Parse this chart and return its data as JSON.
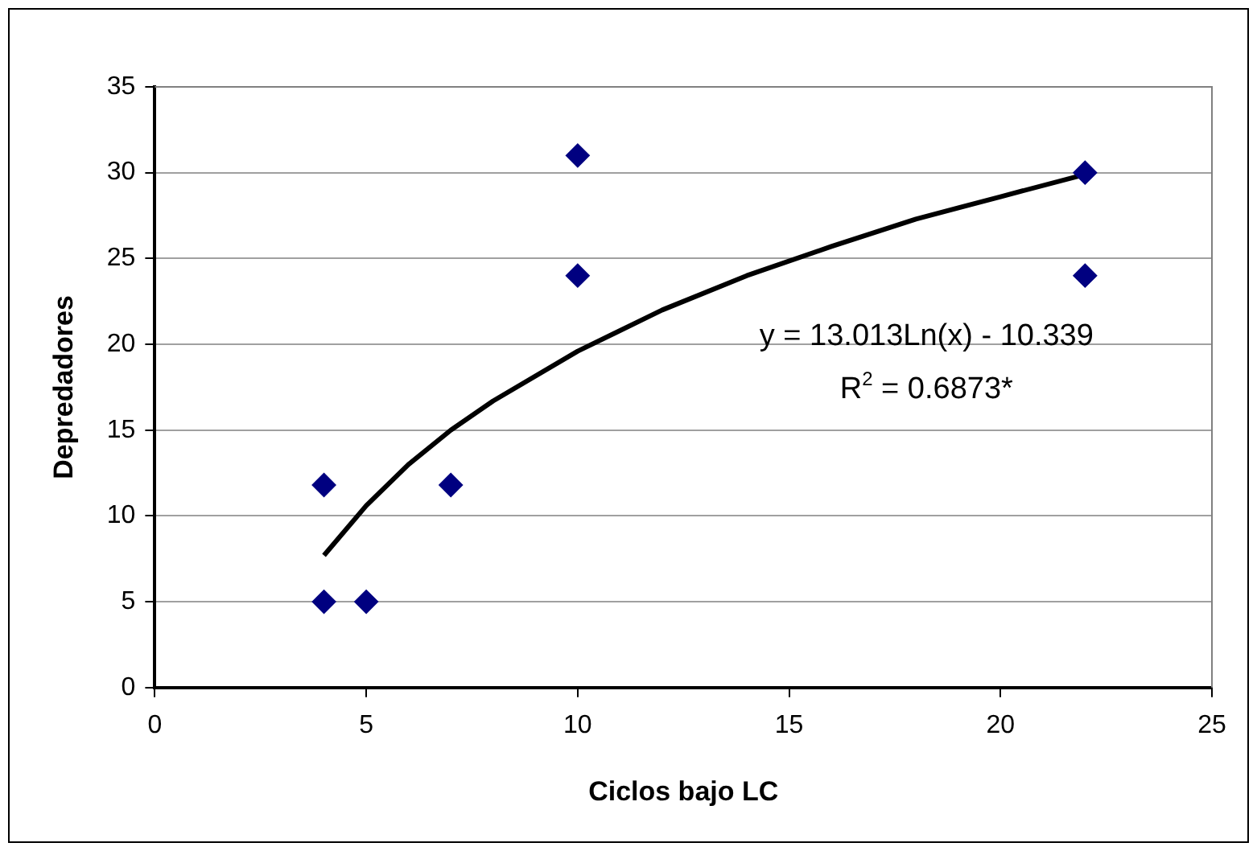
{
  "chart_data": {
    "type": "scatter",
    "xlabel": "Ciclos bajo LC",
    "ylabel": "Depredadores",
    "xlim": [
      0,
      25
    ],
    "xticks": [
      0,
      5,
      10,
      15,
      20,
      25
    ],
    "ylim": [
      0,
      35
    ],
    "yticks": [
      0,
      5,
      10,
      15,
      20,
      25,
      30,
      35
    ],
    "grid": "y",
    "legend": false,
    "marker": "diamond",
    "series": [
      {
        "color": "#000080",
        "x": [
          4,
          4,
          5,
          7,
          10,
          10,
          22,
          22
        ],
        "values": [
          11.8,
          5,
          5,
          11.8,
          31,
          24,
          30,
          24
        ]
      },
      {
        "type": "line",
        "color": "#000000",
        "marker": "none",
        "x": [
          4,
          5,
          6,
          7,
          8,
          10,
          12,
          14,
          16,
          18,
          20,
          22
        ],
        "values": [
          7.7,
          10.6,
          13,
          15,
          16.7,
          19.6,
          22,
          24,
          25.7,
          27.3,
          28.6,
          29.9
        ]
      }
    ],
    "annotations": [
      "y = 13.013Ln(x) - 10.339",
      "R$^{2}$ = 0.6873*"
    ]
  }
}
